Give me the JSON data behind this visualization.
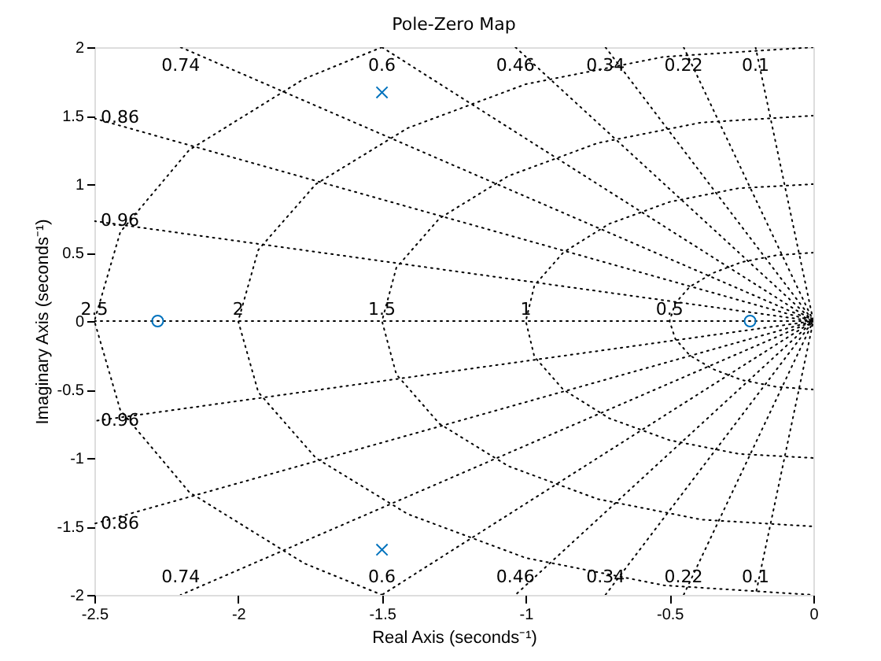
{
  "chart_data": {
    "type": "scatter",
    "title": "Pole-Zero Map",
    "xlabel": "Real Axis (seconds⁻¹)",
    "ylabel": "Imaginary Axis (seconds⁻¹)",
    "xlim": [
      -2.5,
      0
    ],
    "ylim": [
      -2,
      2
    ],
    "xticks": [
      -2.5,
      -2,
      -1.5,
      -1,
      -0.5,
      0
    ],
    "yticks": [
      -2,
      -1.5,
      -1,
      -0.5,
      0,
      0.5,
      1,
      1.5,
      2
    ],
    "grid": false,
    "series": [
      {
        "type": "line",
        "color": "#000000",
        "line_style": "dotted",
        "x": [
          -2.5,
          0
        ],
        "values": [
          0,
          0
        ]
      },
      {
        "type": "line",
        "color": "#000000",
        "line_style": "dotted",
        "x": [
          -0.201,
          0,
          -0.201
        ],
        "values": [
          2,
          0,
          -2
        ]
      },
      {
        "type": "line",
        "color": "#000000",
        "line_style": "dotted",
        "x": [
          -0.451,
          0,
          -0.451
        ],
        "values": [
          2,
          0,
          -2
        ]
      },
      {
        "type": "line",
        "color": "#000000",
        "line_style": "dotted",
        "x": [
          -0.723,
          0,
          -0.723
        ],
        "values": [
          2,
          0,
          -2
        ]
      },
      {
        "type": "line",
        "color": "#000000",
        "line_style": "dotted",
        "x": [
          -1.036,
          0,
          -1.036
        ],
        "values": [
          2,
          0,
          -2
        ]
      },
      {
        "type": "line",
        "color": "#000000",
        "line_style": "dotted",
        "x": [
          -1.5,
          0,
          -1.5
        ],
        "values": [
          2,
          0,
          -2
        ]
      },
      {
        "type": "line",
        "color": "#000000",
        "line_style": "dotted",
        "x": [
          -2.2,
          0,
          -2.2
        ],
        "values": [
          2,
          0,
          -2
        ]
      },
      {
        "type": "line",
        "color": "#000000",
        "line_style": "dotted",
        "x": [
          -2.5,
          0,
          -2.5
        ],
        "values": [
          1.48,
          0,
          -1.48
        ]
      },
      {
        "type": "line",
        "color": "#000000",
        "line_style": "dotted",
        "x": [
          -2.5,
          0,
          -2.5
        ],
        "values": [
          0.73,
          0,
          -0.73
        ]
      },
      {
        "type": "line",
        "color": "#000000",
        "line_style": "dotted",
        "x": [
          -1.5,
          -1.77,
          -2.17,
          -2.41,
          -2.5,
          -2.41,
          -2.17,
          -1.77,
          -1.5
        ],
        "values": [
          2,
          1.77,
          1.25,
          0.65,
          0,
          -0.65,
          -1.25,
          -1.77,
          -2
        ]
      },
      {
        "type": "line",
        "color": "#000000",
        "line_style": "dotted",
        "x": [
          0,
          -0.52,
          -1,
          -1.41,
          -1.73,
          -1.93,
          -2,
          -1.93,
          -1.73,
          -1.41,
          -1,
          -0.52,
          0
        ],
        "values": [
          2,
          1.93,
          1.73,
          1.41,
          1,
          0.52,
          0,
          -0.52,
          -1,
          -1.41,
          -1.73,
          -1.93,
          -2
        ]
      },
      {
        "type": "line",
        "color": "#000000",
        "line_style": "dotted",
        "x": [
          0,
          -0.39,
          -0.75,
          -1.06,
          -1.3,
          -1.45,
          -1.5,
          -1.45,
          -1.3,
          -1.06,
          -0.75,
          -0.39,
          0
        ],
        "values": [
          1.5,
          1.45,
          1.3,
          1.06,
          0.75,
          0.39,
          0,
          -0.39,
          -0.75,
          -1.06,
          -1.3,
          -1.45,
          -1.5
        ]
      },
      {
        "type": "line",
        "color": "#000000",
        "line_style": "dotted",
        "x": [
          0,
          -0.26,
          -0.5,
          -0.71,
          -0.87,
          -0.97,
          -1,
          -0.97,
          -0.87,
          -0.71,
          -0.5,
          -0.26,
          0
        ],
        "values": [
          1,
          0.97,
          0.87,
          0.71,
          0.5,
          0.26,
          0,
          -0.26,
          -0.5,
          -0.71,
          -0.87,
          -0.97,
          -1
        ]
      },
      {
        "type": "line",
        "color": "#000000",
        "line_style": "dotted",
        "x": [
          0,
          -0.13,
          -0.25,
          -0.35,
          -0.43,
          -0.48,
          -0.5,
          -0.48,
          -0.43,
          -0.35,
          -0.25,
          -0.13,
          0
        ],
        "values": [
          0.5,
          0.48,
          0.43,
          0.35,
          0.25,
          0.13,
          0,
          -0.13,
          -0.25,
          -0.35,
          -0.43,
          -0.48,
          -0.5
        ]
      },
      {
        "type": "scatter",
        "color": "#0072bd",
        "marker": "circle",
        "x": [
          -2.28,
          -0.22
        ],
        "values": [
          0,
          0
        ]
      },
      {
        "type": "scatter",
        "color": "#0072bd",
        "marker": "cross",
        "x": [
          -1.5,
          -1.5
        ],
        "values": [
          1.67,
          -1.67
        ]
      }
    ],
    "annotations": [
      {
        "text": "0.74",
        "x": -2.2,
        "y": 2
      },
      {
        "text": "0.6",
        "x": -1.5,
        "y": 2
      },
      {
        "text": "0.46",
        "x": -1.036,
        "y": 2
      },
      {
        "text": "0.34",
        "x": -0.723,
        "y": 2
      },
      {
        "text": "0.22",
        "x": -0.451,
        "y": 2
      },
      {
        "text": "0.1",
        "x": -0.201,
        "y": 2
      },
      {
        "text": "0.86",
        "x": -2.5,
        "y": 1.48
      },
      {
        "text": "0.96",
        "x": -2.5,
        "y": 0.73
      },
      {
        "text": "0.86",
        "x": -2.5,
        "y": -1.48
      },
      {
        "text": "0.96",
        "x": -2.5,
        "y": -0.73
      },
      {
        "text": "0.74",
        "x": -2.2,
        "y": -2
      },
      {
        "text": "0.6",
        "x": -1.5,
        "y": -2
      },
      {
        "text": "0.46",
        "x": -1.036,
        "y": -2
      },
      {
        "text": "0.34",
        "x": -0.723,
        "y": -2
      },
      {
        "text": "0.22",
        "x": -0.451,
        "y": -2
      },
      {
        "text": "0.1",
        "x": -0.201,
        "y": -2
      },
      {
        "text": "2.5",
        "x": -2.5,
        "y": 0
      },
      {
        "text": "2",
        "x": -2.0,
        "y": 0
      },
      {
        "text": "1.5",
        "x": -1.5,
        "y": 0
      },
      {
        "text": "1",
        "x": -1.0,
        "y": 0
      },
      {
        "text": "0.5",
        "x": -0.5,
        "y": 0
      }
    ]
  }
}
